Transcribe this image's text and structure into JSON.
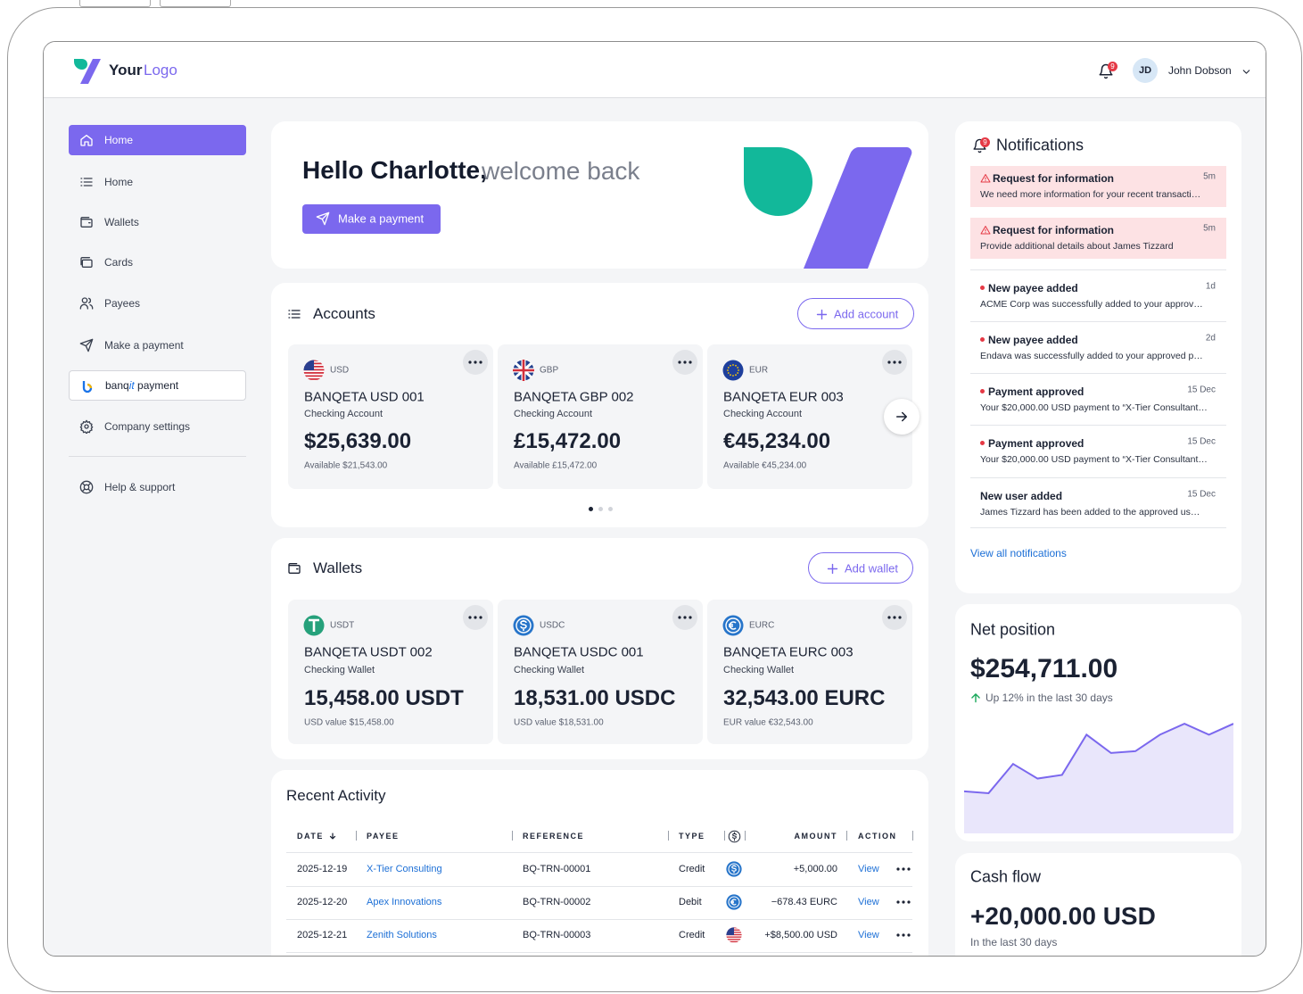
{
  "header": {
    "logo_text": "Your",
    "logo_accent": "Logo",
    "notification_count": "9",
    "user_initials": "JD",
    "user_name": "John Dobson"
  },
  "nav": [
    {
      "label": "Home",
      "icon": "home",
      "active": true
    },
    {
      "label": "Home",
      "icon": "list"
    },
    {
      "label": "Wallets",
      "icon": "wallet"
    },
    {
      "label": "Cards",
      "icon": "cards"
    },
    {
      "label": "Payees",
      "icon": "payees"
    },
    {
      "label": "Make a payment",
      "icon": "send"
    },
    {
      "brand": "banq",
      "brand_accent": "it",
      "label": "payment",
      "icon": "banqit",
      "boxed": true
    },
    {
      "label": "Company settings",
      "icon": "settings"
    },
    {
      "label": "Help & support",
      "icon": "help",
      "separated": true
    }
  ],
  "welcome": {
    "greeting": "Hello Charlotte,",
    "subtitle": "welcome back",
    "button": "Make a payment"
  },
  "accounts": {
    "title": "Accounts",
    "add_button": "Add account",
    "items": [
      {
        "icon": "us",
        "currency": "USD",
        "name": "BANQETA USD 001",
        "type": "Checking Account",
        "balance": "$25,639.00",
        "available": "Available $21,543.00"
      },
      {
        "icon": "gb",
        "currency": "GBP",
        "name": "BANQETA GBP 002",
        "type": "Checking Account",
        "balance": "£15,472.00",
        "available": "Available £15,472.00"
      },
      {
        "icon": "eu",
        "currency": "EUR",
        "name": "BANQETA EUR 003",
        "type": "Checking Account",
        "balance": "€45,234.00",
        "available": "Available €45,234.00"
      }
    ]
  },
  "wallets": {
    "title": "Wallets",
    "add_button": "Add wallet",
    "items": [
      {
        "icon": "usdt",
        "currency": "USDT",
        "name": "BANQETA USDT 002",
        "type": "Checking Wallet",
        "balance": "15,458.00 USDT",
        "available": "USD value $15,458.00"
      },
      {
        "icon": "usdc",
        "currency": "USDC",
        "name": "BANQETA USDC 001",
        "type": "Checking Wallet",
        "balance": "18,531.00 USDC",
        "available": "USD value $18,531.00"
      },
      {
        "icon": "eurc",
        "currency": "EURC",
        "name": "BANQETA EURC 003",
        "type": "Checking Wallet",
        "balance": "32,543.00 EURC",
        "available": "EUR value €32,543.00"
      }
    ]
  },
  "activity": {
    "title": "Recent Activity",
    "columns": [
      "DATE",
      "PAYEE",
      "REFERENCE",
      "TYPE",
      "AMOUNT",
      "ACTION"
    ],
    "rows": [
      {
        "date": "2025-12-19",
        "payee": "X-Tier Consulting",
        "reference": "BQ-TRN-00001",
        "type": "Credit",
        "icon": "usdc",
        "amount": "+5,000.00",
        "action": "View"
      },
      {
        "date": "2025-12-20",
        "payee": "Apex Innovations",
        "reference": "BQ-TRN-00002",
        "type": "Debit",
        "icon": "eurc",
        "amount": "−678.43 EURC",
        "action": "View"
      },
      {
        "date": "2025-12-21",
        "payee": "Zenith Solutions",
        "reference": "BQ-TRN-00003",
        "type": "Credit",
        "icon": "us",
        "amount": "+$8,500.00 USD",
        "action": "View"
      }
    ]
  },
  "notifications": {
    "title": "Notifications",
    "count": "9",
    "view_all": "View all notifications",
    "items": [
      {
        "style": "alert",
        "title": "Request for information",
        "time": "5m",
        "text": "We need more information for your recent transacti…"
      },
      {
        "style": "alert",
        "title": "Request for information",
        "time": "5m",
        "text": "Provide additional details about James Tizzard"
      },
      {
        "style": "dot",
        "title": "New payee added",
        "time": "1d",
        "text": "ACME Corp was successfully added to your approv…"
      },
      {
        "style": "dot",
        "title": "New payee added",
        "time": "2d",
        "text": "Endava was successfully added to your approved p…"
      },
      {
        "style": "dot",
        "title": "Payment approved",
        "time": "15 Dec",
        "text": "Your $20,000.00 USD payment to “X-Tier Consultant…"
      },
      {
        "style": "dot",
        "title": "Payment approved",
        "time": "15 Dec",
        "text": "Your $20,000.00 USD payment to “X-Tier Consultant…"
      },
      {
        "style": "plain",
        "title": "New user added",
        "time": "15 Dec",
        "text": "James Tizzard has been added to the approved us…"
      }
    ]
  },
  "net_position": {
    "title": "Net position",
    "value": "$254,711.00",
    "change": "Up 12% in the last 30 days"
  },
  "chart_data": {
    "type": "area",
    "values": [
      23,
      22,
      38,
      30,
      32,
      54,
      44,
      45,
      54,
      60,
      54,
      60
    ],
    "ylim": [
      0,
      62
    ],
    "color": "#7b68ee"
  },
  "cash_flow": {
    "title": "Cash flow",
    "value": "+20,000.00 USD",
    "subtitle": "In the last 30 days"
  }
}
